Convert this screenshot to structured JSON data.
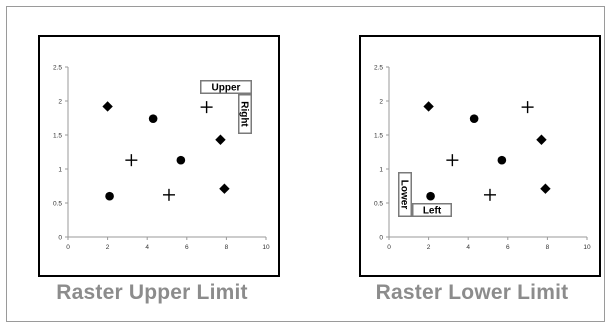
{
  "captions": {
    "upper": "Raster Upper Limit",
    "lower": "Raster Lower Limit"
  },
  "colors": {
    "frame_border": "#9a9a9a",
    "panel_border": "#000000",
    "axis": "#9a9a9a",
    "marker": "#000000",
    "caption": "#8c8c8c",
    "label_box": "#7a7a7a",
    "label_text": "#000000"
  },
  "chart_data": [
    {
      "type": "scatter",
      "title": "",
      "xlabel": "",
      "ylabel": "",
      "xlim": [
        0,
        10
      ],
      "ylim": [
        0,
        2.5
      ],
      "xticks": [
        "0",
        "2",
        "4",
        "6",
        "8",
        "10"
      ],
      "yticks": [
        "0",
        "0.5",
        "1",
        "1.5",
        "2",
        "2.5"
      ],
      "grid": false,
      "series": [
        {
          "marker": "diamond",
          "points": [
            [
              2,
              1.92
            ],
            [
              7.7,
              1.43
            ],
            [
              7.9,
              0.71
            ]
          ]
        },
        {
          "marker": "circle",
          "points": [
            [
              4.3,
              1.74
            ],
            [
              5.7,
              1.13
            ],
            [
              2.1,
              0.6
            ]
          ]
        },
        {
          "marker": "plus",
          "points": [
            [
              7.0,
              1.91
            ],
            [
              3.2,
              1.13
            ],
            [
              5.1,
              0.62
            ]
          ]
        }
      ],
      "annotations": [
        {
          "word": "Upper",
          "orientation": "horizontal"
        },
        {
          "word": "Right",
          "orientation": "vertical"
        }
      ]
    },
    {
      "type": "scatter",
      "title": "",
      "xlabel": "",
      "ylabel": "",
      "xlim": [
        0,
        10
      ],
      "ylim": [
        0,
        2.5
      ],
      "xticks": [
        "0",
        "2",
        "4",
        "6",
        "8",
        "10"
      ],
      "yticks": [
        "0",
        "0.5",
        "1",
        "1.5",
        "2",
        "2.5"
      ],
      "grid": false,
      "series": [
        {
          "marker": "diamond",
          "points": [
            [
              2,
              1.92
            ],
            [
              7.7,
              1.43
            ],
            [
              7.9,
              0.71
            ]
          ]
        },
        {
          "marker": "circle",
          "points": [
            [
              4.3,
              1.74
            ],
            [
              5.7,
              1.13
            ],
            [
              2.1,
              0.6
            ]
          ]
        },
        {
          "marker": "plus",
          "points": [
            [
              7.0,
              1.91
            ],
            [
              3.2,
              1.13
            ],
            [
              5.1,
              0.62
            ]
          ]
        }
      ],
      "annotations": [
        {
          "word": "Lower",
          "orientation": "vertical"
        },
        {
          "word": "Left",
          "orientation": "horizontal"
        }
      ]
    }
  ]
}
